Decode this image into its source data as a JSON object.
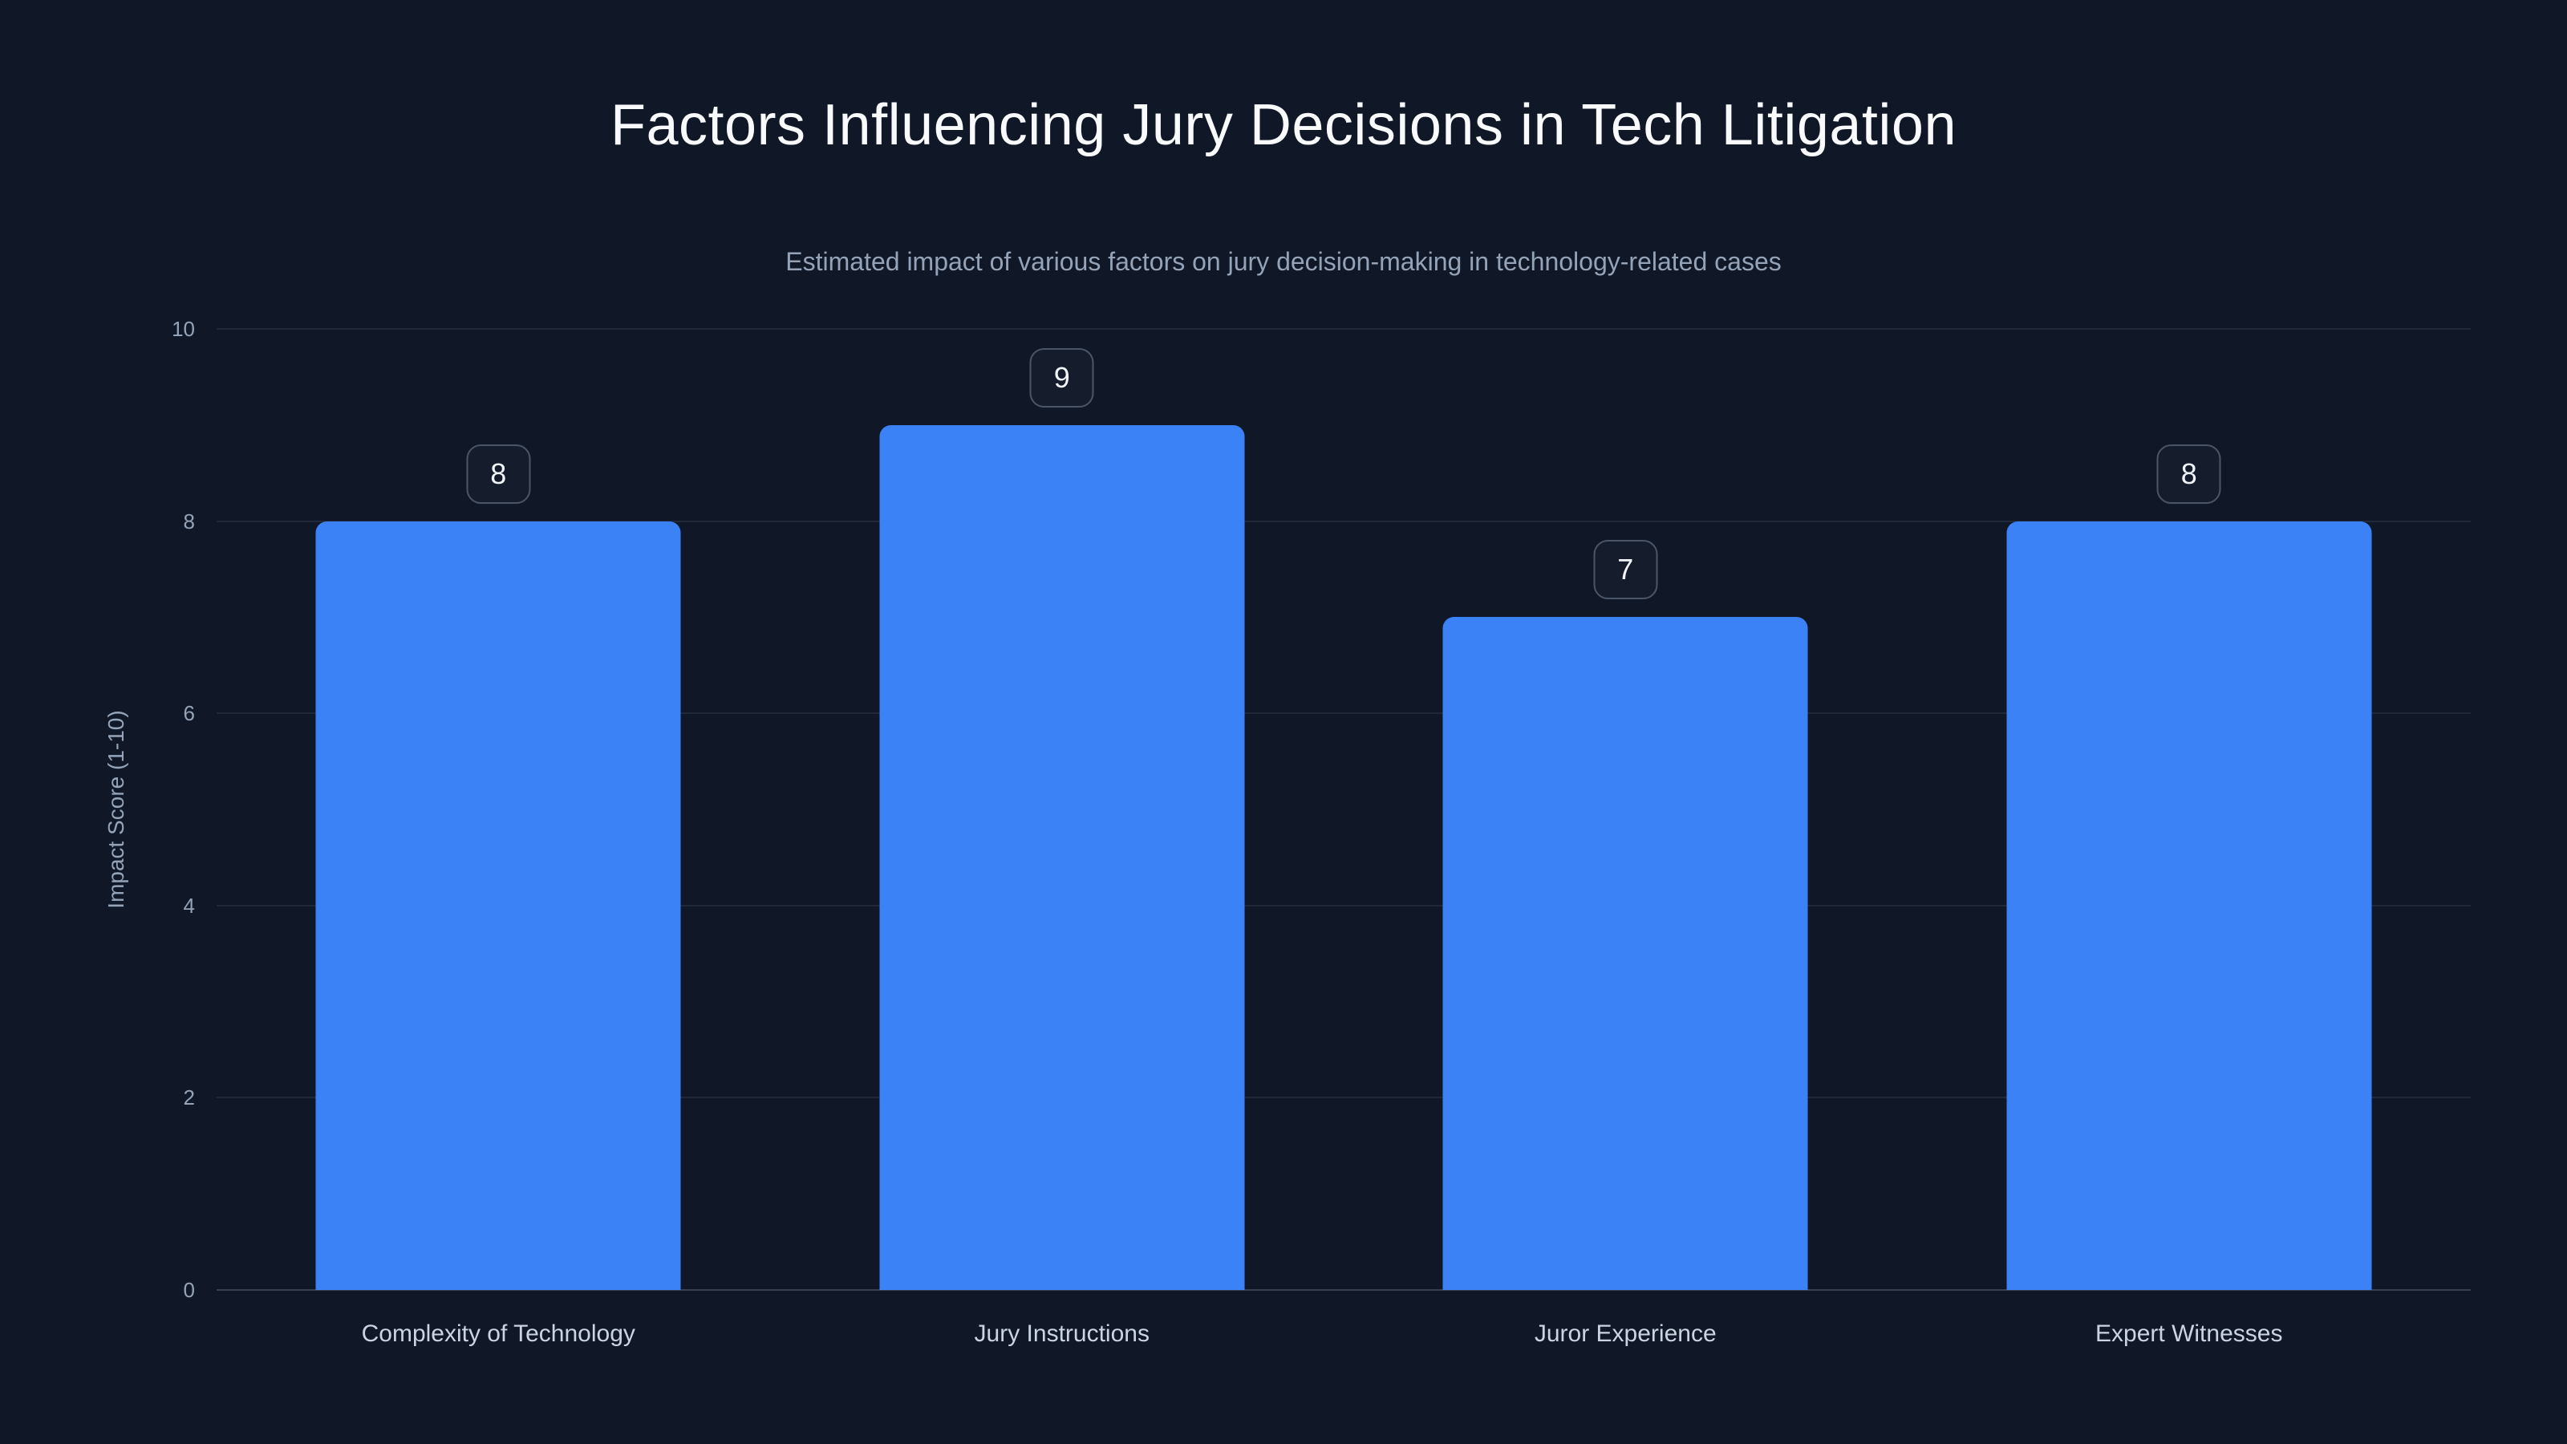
{
  "page": {
    "background_color": "#101828"
  },
  "chart_data": {
    "type": "bar",
    "title": "Factors Influencing Jury Decisions in Tech Litigation",
    "subtitle": "Estimated impact of various factors on jury decision-making in technology-related cases",
    "categories": [
      "Complexity of Technology",
      "Jury Instructions",
      "Juror Experience",
      "Expert Witnesses"
    ],
    "values": [
      8,
      9,
      7,
      8
    ],
    "value_labels": [
      "8",
      "9",
      "7",
      "8"
    ],
    "xlabel": "",
    "ylabel": "Impact Score (1-10)",
    "ylim": [
      0,
      10
    ],
    "yticks": [
      0,
      2,
      4,
      6,
      8,
      10
    ],
    "grid": true,
    "legend_position": "none",
    "bar_color": "#3b82f6",
    "title_color": "#f8fafc",
    "subtitle_color": "#94a3b8",
    "tick_color": "#94a3b8",
    "category_label_color": "#cbd5e1",
    "gridline_color": "rgba(148,163,184,0.13)",
    "badge_border_color": "#4a5668",
    "badge_text_color": "#f1f5f9"
  }
}
